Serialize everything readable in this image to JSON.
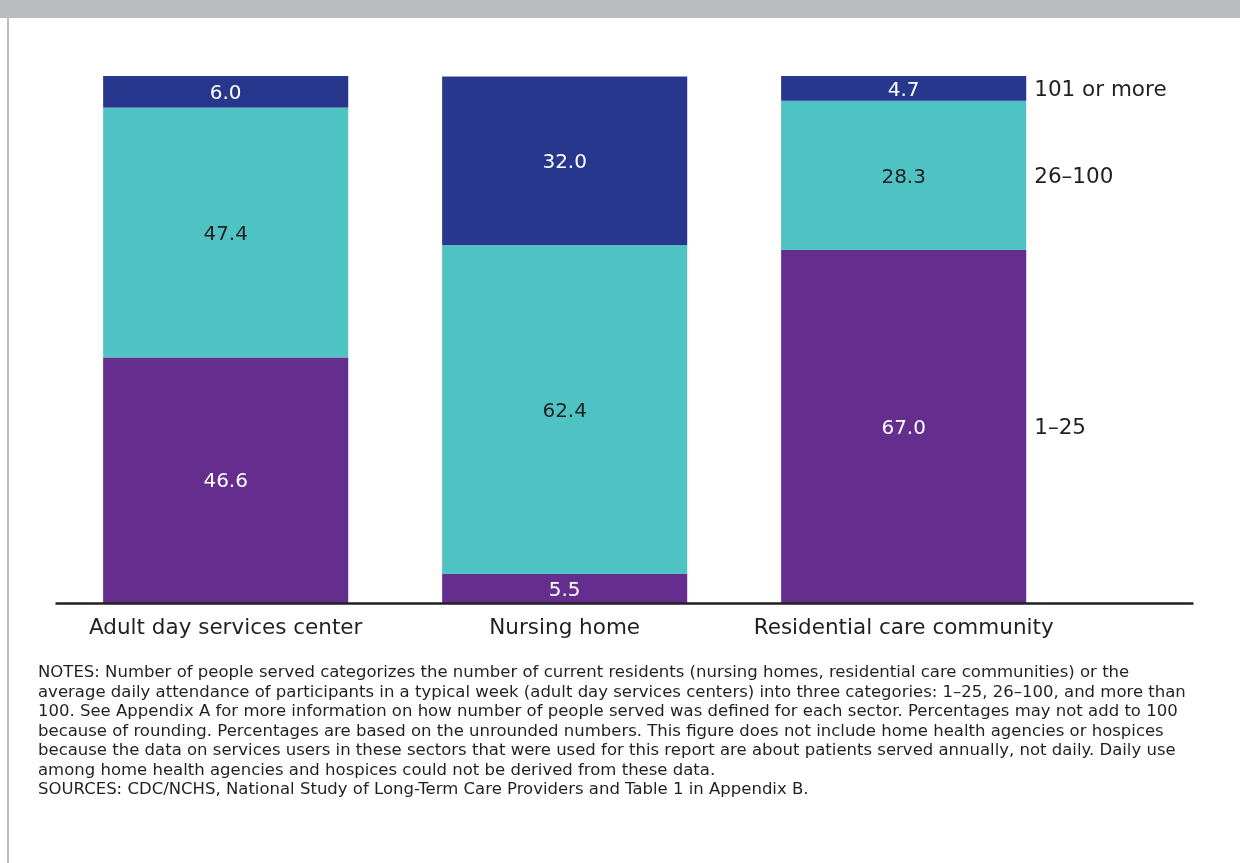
{
  "chart_data": {
    "type": "bar",
    "stacked": true,
    "categories": [
      "Adult day services center",
      "Nursing home",
      "Residential care community"
    ],
    "series": [
      {
        "name": "1–25",
        "color": "#652d8e",
        "values": [
          46.6,
          5.5,
          67.0
        ],
        "value_labels": [
          "46.6",
          "5.5",
          "67.0"
        ]
      },
      {
        "name": "26–100",
        "color": "#4fc3c3",
        "values": [
          47.4,
          62.4,
          28.3
        ],
        "value_labels": [
          "47.4",
          "62.4",
          "28.3"
        ]
      },
      {
        "name": "101 or more",
        "color": "#27378e",
        "values": [
          6.0,
          32.0,
          4.7
        ],
        "value_labels": [
          "6.0",
          "32.0",
          "4.7"
        ]
      }
    ],
    "ylim": [
      0,
      100
    ],
    "tick_labels": "x",
    "legend": "right",
    "annotations": [
      "NOTES: Number of people served categorizes the number of current residents (nursing homes, residential care communities) or the average daily attendance of participants in a typical week (adult day services centers) into three categories: 1–25, 26–100, and more than 100. See Appendix A for more information on how number of people served was defined for each sector. Percentages may not add to 100 because of rounding. Percentages are based on the unrounded numbers. This figure does not include home health agencies or hospices because the data on services users in these sectors that were used for this report are about patients served annually, not daily. Daily use among home health agencies and hospices could not be derived from these data.",
      "SOURCES: CDC/NCHS, National Study of Long-Term Care Providers and Table 1 in Appendix B."
    ]
  }
}
